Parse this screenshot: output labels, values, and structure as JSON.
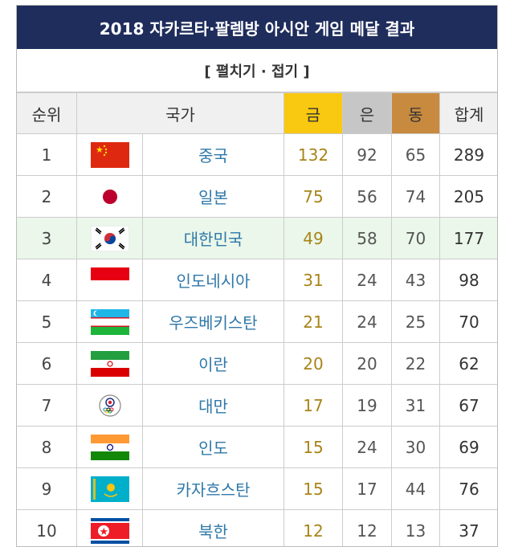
{
  "header": {
    "title": "2018 자카르타·팔렘방 아시안 게임 메달 결과"
  },
  "toggle": {
    "label": "[ 펼치기 · 접기 ]"
  },
  "columns": {
    "rank": "순위",
    "country": "국가",
    "gold": "금",
    "silver": "은",
    "bronze": "동",
    "total": "합계"
  },
  "colors": {
    "title_bg": "#1f2d5c",
    "gold": "#f9c810",
    "silver": "#c6c6c6",
    "bronze": "#c88a3f",
    "highlight": "#eaf7ea",
    "country_link": "#2f78a8"
  },
  "rows": [
    {
      "rank": "1",
      "flag": "china-flag",
      "country": "중국",
      "gold": "132",
      "silver": "92",
      "bronze": "65",
      "total": "289"
    },
    {
      "rank": "2",
      "flag": "japan-flag",
      "country": "일본",
      "gold": "75",
      "silver": "56",
      "bronze": "74",
      "total": "205"
    },
    {
      "rank": "3",
      "flag": "south-korea-flag",
      "country": "대한민국",
      "gold": "49",
      "silver": "58",
      "bronze": "70",
      "total": "177"
    },
    {
      "rank": "4",
      "flag": "indonesia-flag",
      "country": "인도네시아",
      "gold": "31",
      "silver": "24",
      "bronze": "43",
      "total": "98"
    },
    {
      "rank": "5",
      "flag": "uzbekistan-flag",
      "country": "우즈베키스탄",
      "gold": "21",
      "silver": "24",
      "bronze": "25",
      "total": "70"
    },
    {
      "rank": "6",
      "flag": "iran-flag",
      "country": "이란",
      "gold": "20",
      "silver": "20",
      "bronze": "22",
      "total": "62"
    },
    {
      "rank": "7",
      "flag": "chinese-taipei-flag",
      "country": "대만",
      "gold": "17",
      "silver": "19",
      "bronze": "31",
      "total": "67"
    },
    {
      "rank": "8",
      "flag": "india-flag",
      "country": "인도",
      "gold": "15",
      "silver": "24",
      "bronze": "30",
      "total": "69"
    },
    {
      "rank": "9",
      "flag": "kazakhstan-flag",
      "country": "카자흐스탄",
      "gold": "15",
      "silver": "17",
      "bronze": "44",
      "total": "76"
    },
    {
      "rank": "10",
      "flag": "north-korea-flag",
      "country": "북한",
      "gold": "12",
      "silver": "12",
      "bronze": "13",
      "total": "37"
    }
  ]
}
